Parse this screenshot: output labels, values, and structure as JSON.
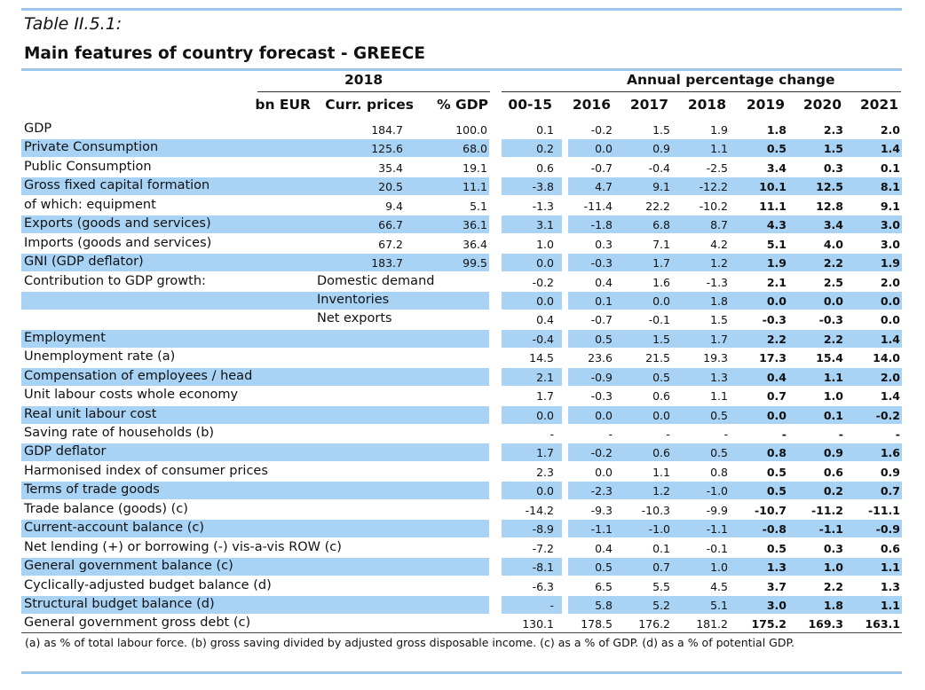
{
  "caption": "Table II.5.1:",
  "title": "Main features of country forecast - GREECE",
  "header": {
    "year": "2018",
    "group": "Annual percentage change",
    "cols": [
      "bn EUR",
      "Curr. prices",
      "% GDP",
      "00-15",
      "2016",
      "2017",
      "2018",
      "2019",
      "2020",
      "2021"
    ]
  },
  "rows": [
    {
      "label": "GDP",
      "sub": "",
      "blue": false,
      "v": [
        "184.7",
        "100.0",
        "0.1",
        "-0.2",
        "1.5",
        "1.9",
        "1.8",
        "2.3",
        "2.0"
      ]
    },
    {
      "label": "Private Consumption",
      "sub": "",
      "blue": true,
      "v": [
        "125.6",
        "68.0",
        "0.2",
        "0.0",
        "0.9",
        "1.1",
        "0.5",
        "1.5",
        "1.4"
      ]
    },
    {
      "label": "Public Consumption",
      "sub": "",
      "blue": false,
      "v": [
        "35.4",
        "19.1",
        "0.6",
        "-0.7",
        "-0.4",
        "-2.5",
        "3.4",
        "0.3",
        "0.1"
      ]
    },
    {
      "label": "Gross fixed capital formation",
      "sub": "",
      "blue": true,
      "v": [
        "20.5",
        "11.1",
        "-3.8",
        "4.7",
        "9.1",
        "-12.2",
        "10.1",
        "12.5",
        "8.1"
      ]
    },
    {
      "label": "of which: equipment",
      "sub": "",
      "blue": false,
      "v": [
        "9.4",
        "5.1",
        "-1.3",
        "-11.4",
        "22.2",
        "-10.2",
        "11.1",
        "12.8",
        "9.1"
      ]
    },
    {
      "label": "Exports (goods and services)",
      "sub": "",
      "blue": true,
      "v": [
        "66.7",
        "36.1",
        "3.1",
        "-1.8",
        "6.8",
        "8.7",
        "4.3",
        "3.4",
        "3.0"
      ]
    },
    {
      "label": "Imports (goods and services)",
      "sub": "",
      "blue": false,
      "v": [
        "67.2",
        "36.4",
        "1.0",
        "0.3",
        "7.1",
        "4.2",
        "5.1",
        "4.0",
        "3.0"
      ]
    },
    {
      "label": "GNI (GDP deflator)",
      "sub": "",
      "blue": true,
      "v": [
        "183.7",
        "99.5",
        "0.0",
        "-0.3",
        "1.7",
        "1.2",
        "1.9",
        "2.2",
        "1.9"
      ]
    },
    {
      "label": "Contribution to GDP growth:",
      "sub": "Domestic demand",
      "blue": false,
      "v": [
        "",
        "",
        "-0.2",
        "0.4",
        "1.6",
        "-1.3",
        "2.1",
        "2.5",
        "2.0"
      ]
    },
    {
      "label": "",
      "sub": "Inventories",
      "blue": true,
      "v": [
        "",
        "",
        "0.0",
        "0.1",
        "0.0",
        "1.8",
        "0.0",
        "0.0",
        "0.0"
      ]
    },
    {
      "label": "",
      "sub": "Net exports",
      "blue": false,
      "v": [
        "",
        "",
        "0.4",
        "-0.7",
        "-0.1",
        "1.5",
        "-0.3",
        "-0.3",
        "0.0"
      ]
    },
    {
      "label": "Employment",
      "sub": "",
      "blue": true,
      "v": [
        "",
        "",
        "-0.4",
        "0.5",
        "1.5",
        "1.7",
        "2.2",
        "2.2",
        "1.4"
      ]
    },
    {
      "label": "Unemployment rate (a)",
      "sub": "",
      "blue": false,
      "v": [
        "",
        "",
        "14.5",
        "23.6",
        "21.5",
        "19.3",
        "17.3",
        "15.4",
        "14.0"
      ]
    },
    {
      "label": "Compensation of employees / head",
      "sub": "",
      "blue": true,
      "v": [
        "",
        "",
        "2.1",
        "-0.9",
        "0.5",
        "1.3",
        "0.4",
        "1.1",
        "2.0"
      ]
    },
    {
      "label": "Unit labour costs whole economy",
      "sub": "",
      "blue": false,
      "v": [
        "",
        "",
        "1.7",
        "-0.3",
        "0.6",
        "1.1",
        "0.7",
        "1.0",
        "1.4"
      ]
    },
    {
      "label": "Real unit labour cost",
      "sub": "",
      "blue": true,
      "v": [
        "",
        "",
        "0.0",
        "0.0",
        "0.0",
        "0.5",
        "0.0",
        "0.1",
        "-0.2"
      ]
    },
    {
      "label": "Saving rate of households (b)",
      "sub": "",
      "blue": false,
      "v": [
        "",
        "",
        "-",
        "-",
        "-",
        "-",
        "-",
        "-",
        "-"
      ]
    },
    {
      "label": "GDP deflator",
      "sub": "",
      "blue": true,
      "v": [
        "",
        "",
        "1.7",
        "-0.2",
        "0.6",
        "0.5",
        "0.8",
        "0.9",
        "1.6"
      ]
    },
    {
      "label": "Harmonised index of consumer prices",
      "sub": "",
      "blue": false,
      "v": [
        "",
        "",
        "2.3",
        "0.0",
        "1.1",
        "0.8",
        "0.5",
        "0.6",
        "0.9"
      ]
    },
    {
      "label": "Terms of trade goods",
      "sub": "",
      "blue": true,
      "v": [
        "",
        "",
        "0.0",
        "-2.3",
        "1.2",
        "-1.0",
        "0.5",
        "0.2",
        "0.7"
      ]
    },
    {
      "label": "Trade balance (goods) (c)",
      "sub": "",
      "blue": false,
      "v": [
        "",
        "",
        "-14.2",
        "-9.3",
        "-10.3",
        "-9.9",
        "-10.7",
        "-11.2",
        "-11.1"
      ]
    },
    {
      "label": "Current-account balance (c)",
      "sub": "",
      "blue": true,
      "v": [
        "",
        "",
        "-8.9",
        "-1.1",
        "-1.0",
        "-1.1",
        "-0.8",
        "-1.1",
        "-0.9"
      ]
    },
    {
      "label": "Net lending (+) or borrowing (-) vis-a-vis ROW (c)",
      "sub": "",
      "blue": false,
      "v": [
        "",
        "",
        "-7.2",
        "0.4",
        "0.1",
        "-0.1",
        "0.5",
        "0.3",
        "0.6"
      ]
    },
    {
      "label": "General government balance (c)",
      "sub": "",
      "blue": true,
      "v": [
        "",
        "",
        "-8.1",
        "0.5",
        "0.7",
        "1.0",
        "1.3",
        "1.0",
        "1.1"
      ]
    },
    {
      "label": "Cyclically-adjusted budget balance (d)",
      "sub": "",
      "blue": false,
      "v": [
        "",
        "",
        "-6.3",
        "6.5",
        "5.5",
        "4.5",
        "3.7",
        "2.2",
        "1.3"
      ]
    },
    {
      "label": "Structural budget balance (d)",
      "sub": "",
      "blue": true,
      "v": [
        "",
        "",
        "-",
        "5.8",
        "5.2",
        "5.1",
        "3.0",
        "1.8",
        "1.1"
      ]
    },
    {
      "label": "General government gross debt (c)",
      "sub": "",
      "blue": false,
      "v": [
        "",
        "",
        "130.1",
        "178.5",
        "176.2",
        "181.2",
        "175.2",
        "169.3",
        "163.1"
      ]
    }
  ],
  "footnote": "(a) as % of total labour force. (b) gross saving divided by adjusted gross disposable income.  (c) as a % of  GDP. (d) as a % of  potential GDP."
}
